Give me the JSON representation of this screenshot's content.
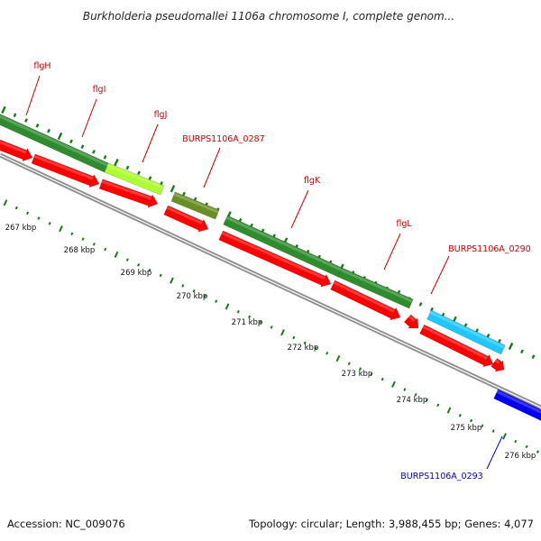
{
  "title": "Burkholderia pseudomallei 1106a chromosome I, complete genom...",
  "footer": {
    "accession": "Accession: NC_009076",
    "summary": "Topology: circular; Length: 3,988,455 bp; Genes: 4,077"
  },
  "kbp_labels": [
    "267 kbp",
    "268 kbp",
    "269 kbp",
    "270 kbp",
    "271 kbp",
    "272 kbp",
    "273 kbp",
    "274 kbp",
    "275 kbp",
    "276 kbp"
  ],
  "colors": {
    "backbone": "#909090",
    "cds": "#ff0000",
    "gene_dark_green": "#2e8b2e",
    "gene_light_green": "#adff2f",
    "gene_olive": "#6b8e23",
    "gene_cyan": "#1ec8ff",
    "gene_blue": "#0000ee",
    "tick": "#1a7a1a",
    "label_red": "#cc0000",
    "label_blue": "#0000cc"
  },
  "genes": [
    {
      "name": "flgH",
      "color": "gene_dark_green",
      "label_color": "label_red"
    },
    {
      "name": "flgI",
      "color": "gene_dark_green",
      "label_color": "label_red"
    },
    {
      "name": "flgJ",
      "color": "gene_light_green",
      "label_color": "label_red"
    },
    {
      "name": "BURPS1106A_0287",
      "color": "gene_olive",
      "label_color": "label_red"
    },
    {
      "name": "flgK",
      "color": "gene_dark_green",
      "label_color": "label_red"
    },
    {
      "name": "flgL",
      "color": "gene_dark_green",
      "label_color": "label_red"
    },
    {
      "name": "BURPS1106A_0290",
      "color": "gene_cyan",
      "label_color": "label_red"
    },
    {
      "name": "BURPS1106A_0293",
      "color": "gene_blue",
      "label_color": "label_blue"
    }
  ]
}
